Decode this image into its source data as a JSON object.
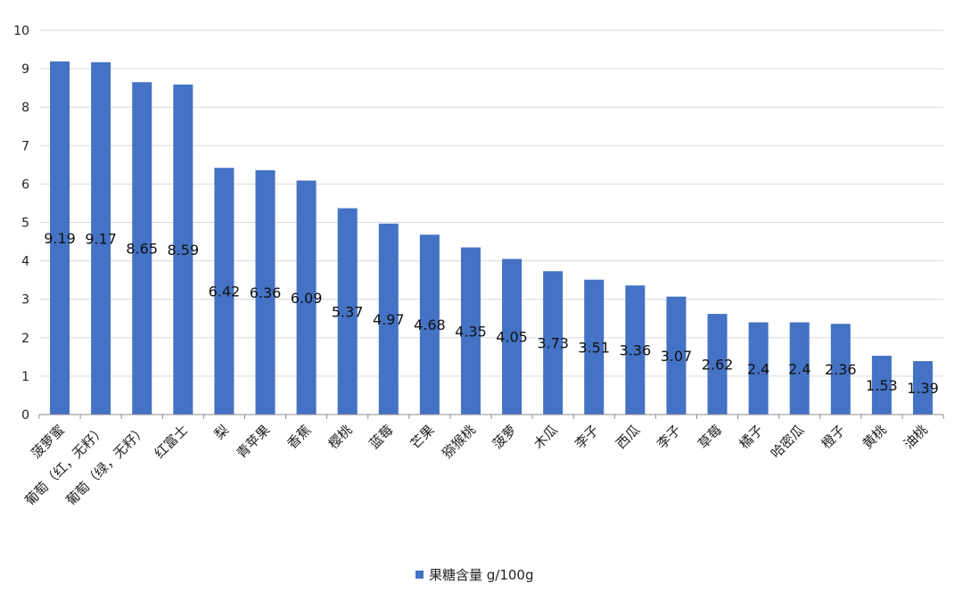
{
  "chart_data": {
    "type": "bar",
    "categories": [
      "菠萝蜜",
      "葡萄（红，无籽）",
      "葡萄（绿，无籽）",
      "红富士",
      "梨",
      "青苹果",
      "香蕉",
      "樱桃",
      "蓝莓",
      "芒果",
      "猕猴桃",
      "菠萝",
      "木瓜",
      "李子",
      "西瓜",
      "李子",
      "草莓",
      "橘子",
      "哈密瓜",
      "橙子",
      "黄桃",
      "油桃"
    ],
    "series": [
      {
        "name": "果糖含量 g/100g",
        "values": [
          9.19,
          9.17,
          8.65,
          8.59,
          6.42,
          6.36,
          6.09,
          5.37,
          4.97,
          4.68,
          4.35,
          4.05,
          3.73,
          3.51,
          3.36,
          3.07,
          2.62,
          2.4,
          2.4,
          2.36,
          1.53,
          1.39
        ]
      }
    ],
    "yticks": [
      "0",
      "1",
      "2",
      "3",
      "4",
      "5",
      "6",
      "7",
      "8",
      "9",
      "10"
    ],
    "data_labels": [
      "9.19",
      "9.17",
      "8.65",
      "8.59",
      "6.42",
      "6.36",
      "6.09",
      "5.37",
      "4.97",
      "4.68",
      "4.35",
      "4.05",
      "3.73",
      "3.51",
      "3.36",
      "3.07",
      "2.62",
      "2.4",
      "2.4",
      "2.36",
      "1.53",
      "1.39"
    ],
    "ylim": [
      0,
      10
    ],
    "grid": true,
    "legend_position": "bottom",
    "bar_color": "#4472C4"
  }
}
